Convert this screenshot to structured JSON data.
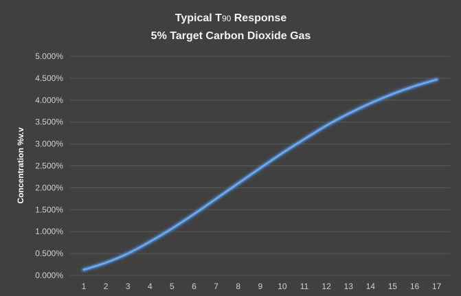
{
  "chart_data": {
    "type": "line",
    "title_line1": "Typical T",
    "title_subscript": "90",
    "title_line1_suffix": " Response",
    "title_line2": "5% Target Carbon Dioxide Gas",
    "xlabel": "",
    "ylabel": "Concentration %v.v",
    "x": [
      1,
      2,
      3,
      4,
      5,
      6,
      7,
      8,
      9,
      10,
      11,
      12,
      13,
      14,
      15,
      16,
      17
    ],
    "x_tick_labels": [
      "1",
      "2",
      "3",
      "4",
      "5",
      "6",
      "7",
      "8",
      "9",
      "10",
      "11",
      "12",
      "13",
      "14",
      "15",
      "16",
      "17"
    ],
    "series": [
      {
        "values": [
          0.13,
          0.29,
          0.5,
          0.77,
          1.07,
          1.4,
          1.75,
          2.1,
          2.45,
          2.79,
          3.11,
          3.42,
          3.69,
          3.93,
          4.14,
          4.32,
          4.47
        ]
      }
    ],
    "ylim": [
      0,
      5
    ],
    "y_ticks": [
      0,
      0.5,
      1,
      1.5,
      2,
      2.5,
      3,
      3.5,
      4,
      4.5,
      5
    ],
    "y_tick_labels": [
      "0.000%",
      "0.500%",
      "1.000%",
      "1.500%",
      "2.000%",
      "2.500%",
      "3.000%",
      "3.500%",
      "4.000%",
      "4.500%",
      "5.000%"
    ],
    "grid": true,
    "legend": "none",
    "colors": {
      "background": "#404040",
      "gridline": "#595959",
      "line": "#6fa8e8",
      "glow": "#4a90e2"
    }
  }
}
